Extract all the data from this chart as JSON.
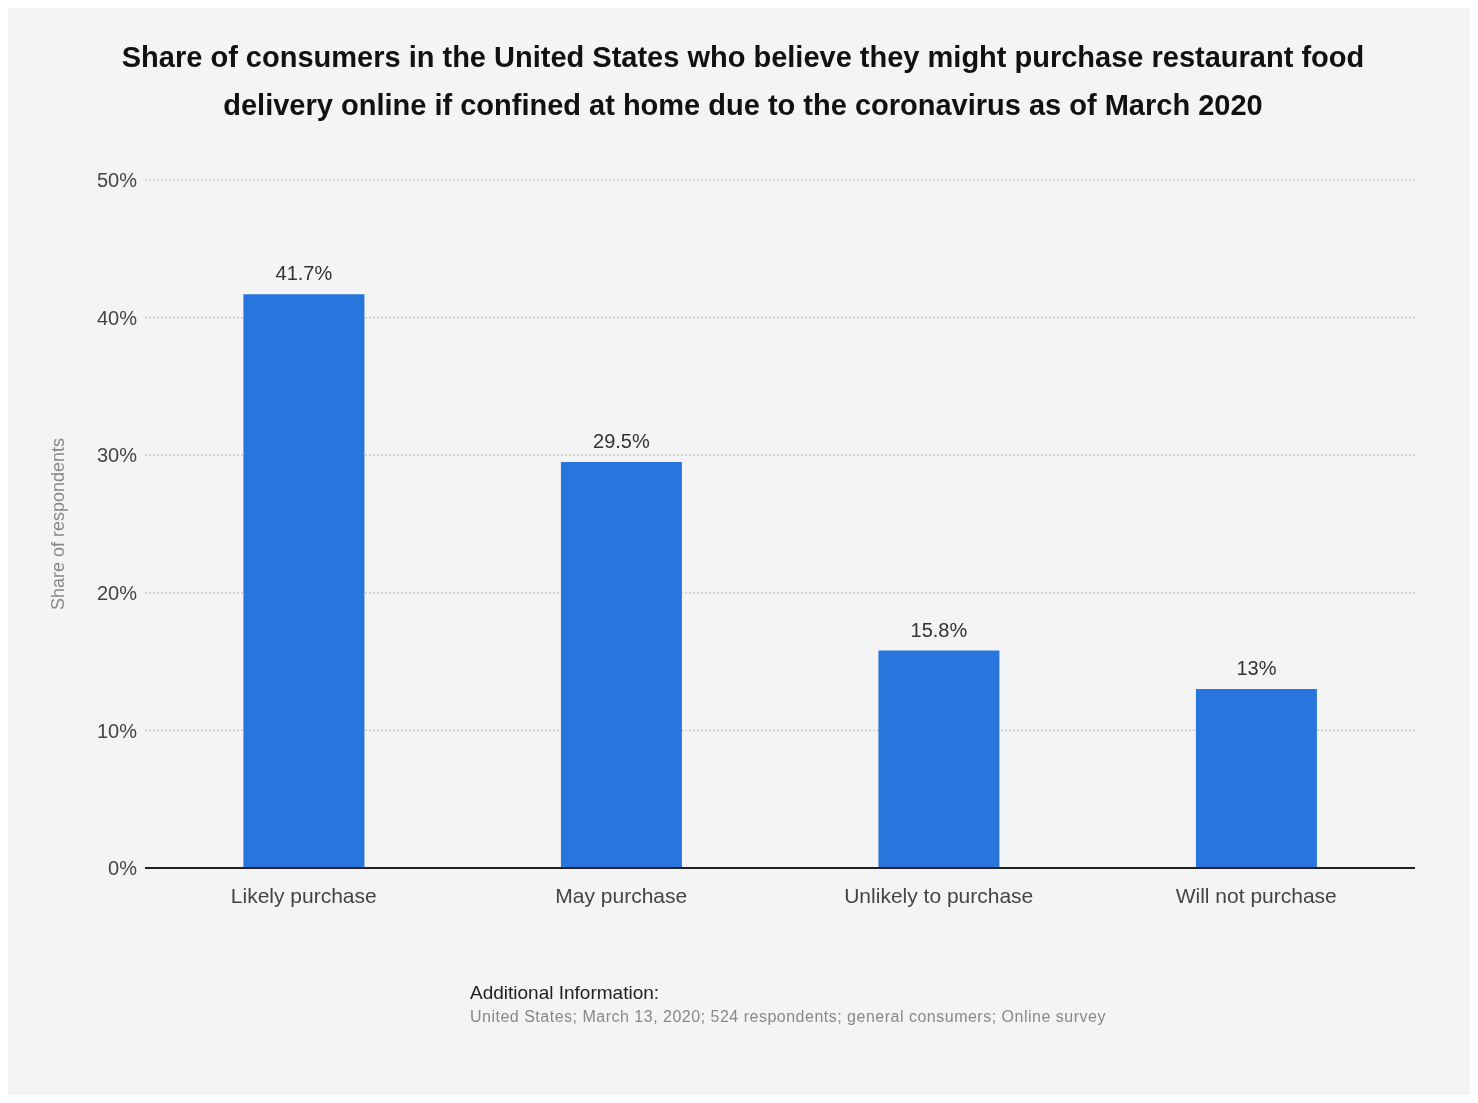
{
  "chart_data": {
    "type": "bar",
    "title": "Share of consumers in the United States who believe they might purchase restaurant food delivery online if confined at home due to the coronavirus as of March 2020",
    "categories": [
      "Likely purchase",
      "May purchase",
      "Unlikely to purchase",
      "Will not purchase"
    ],
    "values": [
      41.7,
      29.5,
      15.8,
      13
    ],
    "value_labels": [
      "41.7%",
      "29.5%",
      "15.8%",
      "13%"
    ],
    "color": "#2876dd",
    "ylabel": "Share of respondents",
    "ylim": [
      0,
      50
    ],
    "yticks": [
      {
        "value": 0,
        "label": "0%"
      },
      {
        "value": 10,
        "label": "10%"
      },
      {
        "value": 20,
        "label": "20%"
      },
      {
        "value": 30,
        "label": "30%"
      },
      {
        "value": 40,
        "label": "40%"
      },
      {
        "value": 50,
        "label": "50%"
      }
    ],
    "grid": "y",
    "annotations": [
      "Additional Information:",
      "United States; March 13, 2020; 524 respondents; general consumers; Online survey"
    ]
  }
}
